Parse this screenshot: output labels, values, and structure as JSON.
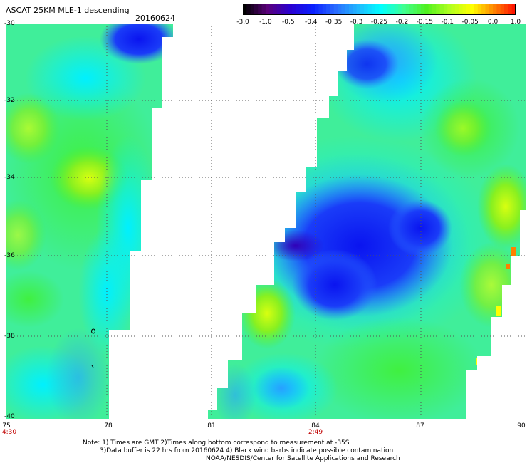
{
  "header": {
    "title": "ASCAT 25KM MLE-1 descending",
    "date": "20160624"
  },
  "colorbar": {
    "ticks": [
      "-3.0",
      "-1.0",
      "-0.5",
      "-0.4",
      "-0.35",
      "-0.3",
      "-0.25",
      "-0.2",
      "-0.15",
      "-0.1",
      "-0.05",
      "0.0",
      "1.0"
    ],
    "colors": [
      "#000000",
      "#5a007a",
      "#2a00d0",
      "#0a20ff",
      "#2a6cff",
      "#20b8ff",
      "#00ffff",
      "#40ff90",
      "#50f020",
      "#b0ff20",
      "#ffff00",
      "#ff8000",
      "#ff0000"
    ]
  },
  "axes": {
    "y_labels": [
      "-30",
      "-32",
      "-34",
      "-36",
      "-38",
      "-40"
    ],
    "x_labels": [
      "75",
      "78",
      "81",
      "84",
      "87",
      "90"
    ],
    "time_labels": [
      "4:30",
      "2:49"
    ]
  },
  "notes": {
    "line1": "Note: 1) Times are GMT 2)Times along bottom correspond to measurement at -35S",
    "line2": "3)Data buffer is 22 hrs from 20160624 4) Black wind barbs indicate possible contamination",
    "line3": "NOAA/NESDIS/Center for Satellite Applications and Research"
  }
}
